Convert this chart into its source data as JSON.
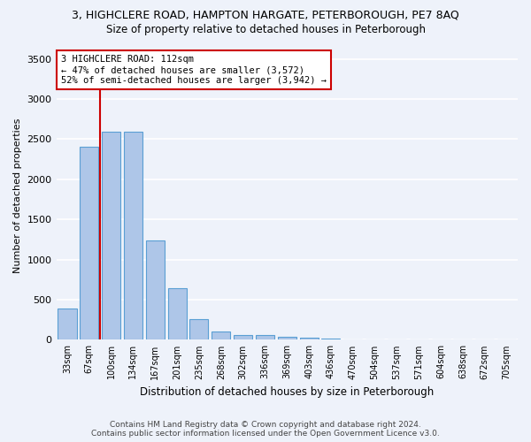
{
  "title": "3, HIGHCLERE ROAD, HAMPTON HARGATE, PETERBOROUGH, PE7 8AQ",
  "subtitle": "Size of property relative to detached houses in Peterborough",
  "xlabel": "Distribution of detached houses by size in Peterborough",
  "ylabel": "Number of detached properties",
  "categories": [
    "33sqm",
    "67sqm",
    "100sqm",
    "134sqm",
    "167sqm",
    "201sqm",
    "235sqm",
    "268sqm",
    "302sqm",
    "336sqm",
    "369sqm",
    "403sqm",
    "436sqm",
    "470sqm",
    "504sqm",
    "537sqm",
    "571sqm",
    "604sqm",
    "638sqm",
    "672sqm",
    "705sqm"
  ],
  "values": [
    390,
    2400,
    2590,
    2590,
    1240,
    640,
    255,
    100,
    65,
    55,
    40,
    30,
    15,
    10,
    5,
    3,
    2,
    1,
    0,
    0,
    0
  ],
  "bar_color": "#aec6e8",
  "bar_edge_color": "#5a9fd4",
  "annotation_text": "3 HIGHCLERE ROAD: 112sqm\n← 47% of detached houses are smaller (3,572)\n52% of semi-detached houses are larger (3,942) →",
  "vline_color": "#cc0000",
  "ylim": [
    0,
    3600
  ],
  "yticks": [
    0,
    500,
    1000,
    1500,
    2000,
    2500,
    3000,
    3500
  ],
  "footer_line1": "Contains HM Land Registry data © Crown copyright and database right 2024.",
  "footer_line2": "Contains public sector information licensed under the Open Government Licence v3.0.",
  "bg_color": "#eef2fa",
  "grid_color": "#ffffff",
  "annotation_box_color": "#cc0000"
}
